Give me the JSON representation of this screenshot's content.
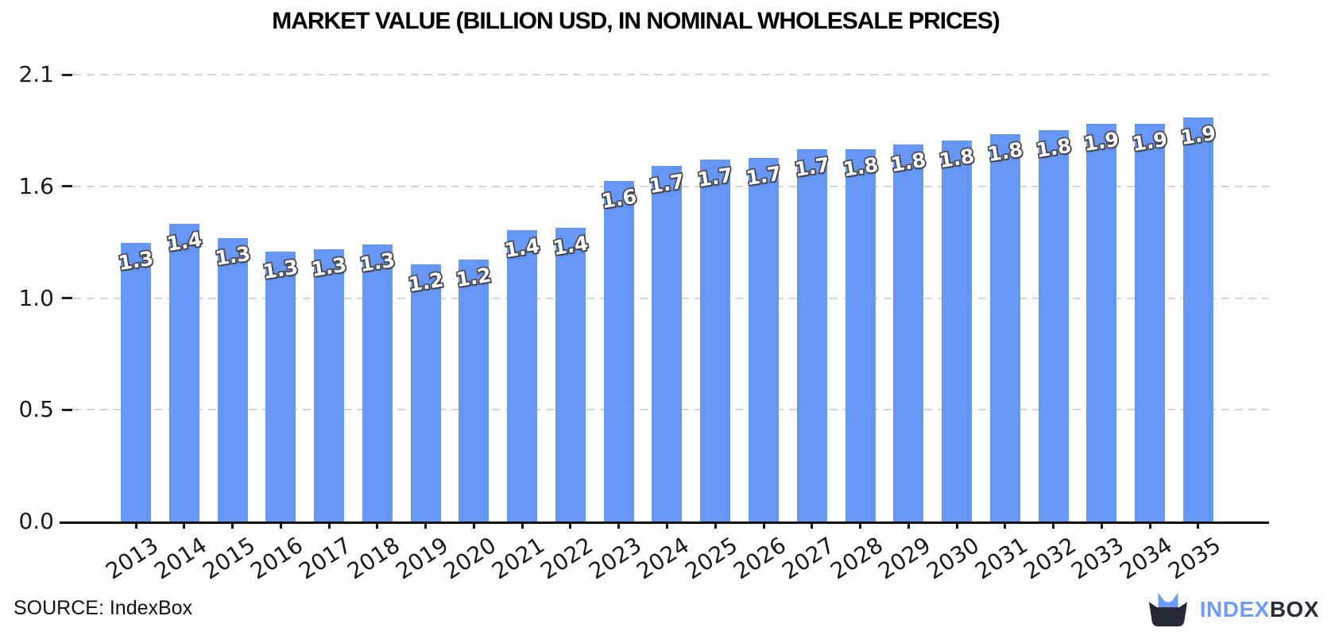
{
  "title": "MARKET VALUE (BILLION USD, IN NOMINAL WHOLESALE PRICES)",
  "source": {
    "label": "SOURCE: IndexBox"
  },
  "logo": {
    "text_primary": "INDEX",
    "text_secondary": "BOX",
    "icon": "indexbox-box-with-cat-ears",
    "color_primary": "#6f9cf6",
    "color_secondary": "#2a2c37"
  },
  "chart_data": {
    "type": "bar",
    "title": "MARKET VALUE (BILLION USD, IN NOMINAL WHOLESALE PRICES)",
    "xlabel": "",
    "ylabel": "",
    "categories": [
      "2013",
      "2014",
      "2015",
      "2016",
      "2017",
      "2018",
      "2019",
      "2020",
      "2021",
      "2022",
      "2023",
      "2024",
      "2025",
      "2026",
      "2027",
      "2028",
      "2029",
      "2030",
      "2031",
      "2032",
      "2033",
      "2034",
      "2035"
    ],
    "values": [
      1.31,
      1.4,
      1.33,
      1.27,
      1.28,
      1.3,
      1.21,
      1.23,
      1.37,
      1.38,
      1.6,
      1.67,
      1.7,
      1.71,
      1.75,
      1.75,
      1.77,
      1.79,
      1.82,
      1.84,
      1.87,
      1.87,
      1.9
    ],
    "bar_labels": [
      "1.3",
      "1.4",
      "1.3",
      "1.3",
      "1.3",
      "1.3",
      "1.2",
      "1.2",
      "1.4",
      "1.4",
      "1.6",
      "1.7",
      "1.7",
      "1.7",
      "1.7",
      "1.8",
      "1.8",
      "1.8",
      "1.8",
      "1.8",
      "1.9",
      "1.9",
      "1.9"
    ],
    "ylim": [
      0,
      2.1
    ],
    "yticks": [
      {
        "value": 0.0,
        "label": "0.0"
      },
      {
        "value": 0.525,
        "label": "0.5"
      },
      {
        "value": 1.05,
        "label": "1.0"
      },
      {
        "value": 1.575,
        "label": "1.6"
      },
      {
        "value": 2.1,
        "label": "2.1"
      }
    ],
    "bar_color": "#6697f7",
    "grid": "horizontal dashed",
    "legend": "none"
  }
}
